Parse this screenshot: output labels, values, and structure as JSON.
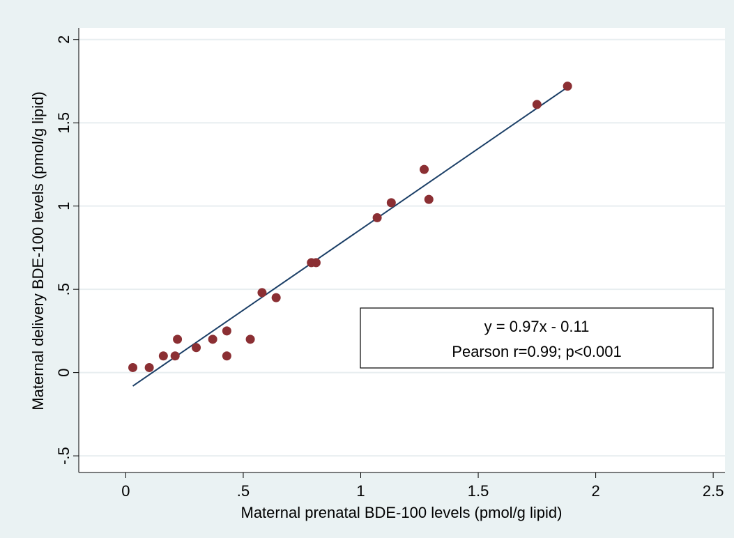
{
  "chart_data": {
    "type": "scatter",
    "xlabel": "Maternal prenatal BDE-100 levels (pmol/g lipid)",
    "ylabel": "Maternal delivery BDE-100 levels (pmol/g lipid)",
    "xlim": [
      -0.2,
      2.55
    ],
    "ylim": [
      -0.6,
      2.07
    ],
    "x_ticks": [
      0,
      0.5,
      1,
      1.5,
      2,
      2.5
    ],
    "x_tick_labels": [
      "0",
      ".5",
      "1",
      "1.5",
      "2",
      "2.5"
    ],
    "y_ticks": [
      -0.5,
      0,
      0.5,
      1,
      1.5,
      2
    ],
    "y_tick_labels": [
      "-.5",
      "0",
      ".5",
      "1",
      "1.5",
      "2"
    ],
    "grid": "horizontal",
    "colors": {
      "points": "#8b2f33",
      "fit_line": "#1a3e66",
      "plot_bg": "#ffffff",
      "page_bg": "#eaf2f3",
      "grid": "#e8eef0"
    },
    "points": [
      {
        "x": 0.03,
        "y": 0.03
      },
      {
        "x": 0.1,
        "y": 0.03
      },
      {
        "x": 0.16,
        "y": 0.1
      },
      {
        "x": 0.21,
        "y": 0.1
      },
      {
        "x": 0.22,
        "y": 0.2
      },
      {
        "x": 0.3,
        "y": 0.15
      },
      {
        "x": 0.37,
        "y": 0.2
      },
      {
        "x": 0.43,
        "y": 0.25
      },
      {
        "x": 0.43,
        "y": 0.1
      },
      {
        "x": 0.53,
        "y": 0.2
      },
      {
        "x": 0.58,
        "y": 0.48
      },
      {
        "x": 0.64,
        "y": 0.45
      },
      {
        "x": 0.79,
        "y": 0.66
      },
      {
        "x": 0.81,
        "y": 0.66
      },
      {
        "x": 1.07,
        "y": 0.93
      },
      {
        "x": 1.13,
        "y": 1.02
      },
      {
        "x": 1.27,
        "y": 1.22
      },
      {
        "x": 1.29,
        "y": 1.04
      },
      {
        "x": 1.75,
        "y": 1.61
      },
      {
        "x": 1.88,
        "y": 1.72
      }
    ],
    "fit_line": {
      "slope": 0.97,
      "intercept": -0.11,
      "x_start": 0.03,
      "x_end": 1.88
    },
    "annotation": {
      "line1": "y = 0.97x - 0.11",
      "line2": "Pearson r=0.99; p<0.001"
    }
  }
}
